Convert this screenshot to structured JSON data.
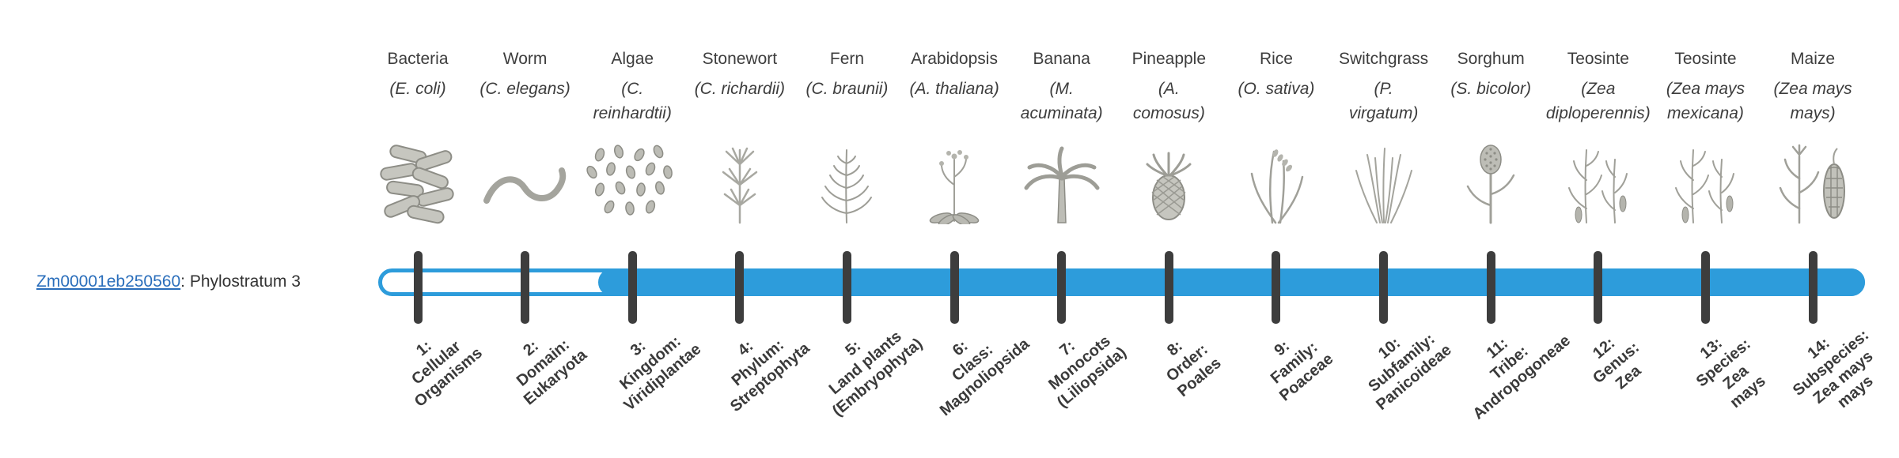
{
  "page": {
    "background": "#ffffff"
  },
  "gene": {
    "id": "Zm00001eb250560",
    "suffix": ": Phylostratum 3"
  },
  "timeline": {
    "bar_color": "#2D9CDB",
    "unfilled_color": "#ffffff",
    "tick_color": "#3d3d3d",
    "link_color": "#2a6ebb",
    "filled_from_stratum": 3,
    "num_strata": 14
  },
  "organisms": [
    {
      "common": "Bacteria",
      "sci": "(E. coli)",
      "icon": "bacteria"
    },
    {
      "common": "Worm",
      "sci": "(C. elegans)",
      "icon": "worm"
    },
    {
      "common": "Algae",
      "sci": "(C.\nreinhardtii)",
      "icon": "algae"
    },
    {
      "common": "Stonewort",
      "sci": "(C. richardii)",
      "icon": "stonewort"
    },
    {
      "common": "Fern",
      "sci": "(C. braunii)",
      "icon": "fern"
    },
    {
      "common": "Arabidopsis",
      "sci": "(A. thaliana)",
      "icon": "arabidopsis"
    },
    {
      "common": "Banana",
      "sci": "(M.\nacuminata)",
      "icon": "banana"
    },
    {
      "common": "Pineapple",
      "sci": "(A.\ncomosus)",
      "icon": "pineapple"
    },
    {
      "common": "Rice",
      "sci": "(O. sativa)",
      "icon": "rice"
    },
    {
      "common": "Switchgrass",
      "sci": "(P.\nvirgatum)",
      "icon": "switchgrass"
    },
    {
      "common": "Sorghum",
      "sci": "(S. bicolor)",
      "icon": "sorghum"
    },
    {
      "common": "Teosinte",
      "sci": "(Zea\ndiploperennis)",
      "icon": "teosinte"
    },
    {
      "common": "Teosinte",
      "sci": "(Zea mays\nmexicana)",
      "icon": "teosinte"
    },
    {
      "common": "Maize",
      "sci": "(Zea mays\nmays)",
      "icon": "maize"
    }
  ],
  "phylostrata": [
    {
      "label": "1:\nCellular\nOrganisms"
    },
    {
      "label": "2:\nDomain:\nEukaryota"
    },
    {
      "label": "3:\nKingdom:\nViridiplantae"
    },
    {
      "label": "4:\nPhylum:\nStreptophyta"
    },
    {
      "label": "5:\nLand plants\n(Embryophyta)"
    },
    {
      "label": "6:\nClass:\nMagnoliopsida"
    },
    {
      "label": "7:\nMonocots\n(Liliopsida)"
    },
    {
      "label": "8:\nOrder:\nPoales"
    },
    {
      "label": "9:\nFamily:\nPoaceae"
    },
    {
      "label": "10:\nSubfamily:\nPanicoideae"
    },
    {
      "label": "11:\nTribe:\nAndropogoneae"
    },
    {
      "label": "12:\nGenus:\nZea"
    },
    {
      "label": "13:\nSpecies:\nZea\nmays"
    },
    {
      "label": "14:\nSubspecies:\nZea mays\nmays"
    }
  ]
}
